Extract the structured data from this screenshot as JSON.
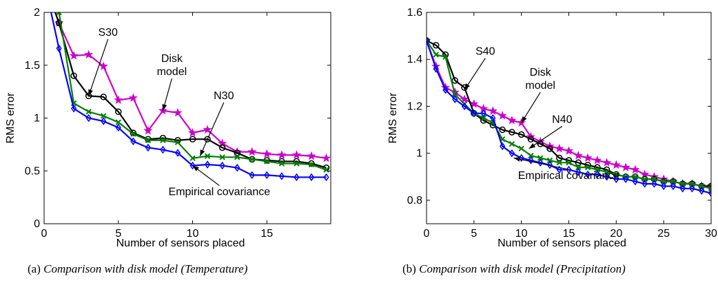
{
  "chart_data": [
    {
      "type": "line",
      "panel": "a",
      "caption_prefix": "(a)",
      "caption": "Comparison with disk model (Temperature)",
      "xlabel": "Number of sensors placed",
      "ylabel": "RMS error",
      "xlim": [
        0,
        19.3
      ],
      "ylim": [
        0,
        2
      ],
      "xticks": [
        0,
        5,
        10,
        15
      ],
      "yticks": [
        0,
        0.5,
        1,
        1.5,
        2
      ],
      "ytick_labels": [
        "0",
        "0.5",
        "1",
        "1.5",
        "2"
      ],
      "grid": false,
      "series": [
        {
          "id": "disk",
          "color": "#cc00cc",
          "marker": "star",
          "x": [
            0,
            1,
            2,
            3,
            4,
            5,
            6,
            7,
            8,
            9,
            10,
            11,
            12,
            13,
            14,
            15,
            16,
            17,
            18,
            19
          ],
          "y": [
            2.3,
            1.9,
            1.59,
            1.6,
            1.49,
            1.17,
            1.19,
            0.88,
            1.07,
            1.05,
            0.86,
            0.89,
            0.76,
            0.68,
            0.68,
            0.66,
            0.65,
            0.65,
            0.64,
            0.62
          ]
        },
        {
          "id": "s30",
          "color": "#000000",
          "marker": "circle",
          "x": [
            0,
            1,
            2,
            3,
            4,
            5,
            6,
            7,
            8,
            9,
            10,
            11,
            12,
            13,
            14,
            15,
            16,
            17,
            18,
            19
          ],
          "y": [
            2.3,
            1.9,
            1.4,
            1.21,
            1.2,
            1.06,
            0.86,
            0.8,
            0.81,
            0.79,
            0.8,
            0.8,
            0.72,
            0.67,
            0.61,
            0.6,
            0.59,
            0.59,
            0.57,
            0.53
          ]
        },
        {
          "id": "n30",
          "color": "#008000",
          "marker": "x",
          "x": [
            0,
            1,
            2,
            3,
            4,
            5,
            6,
            7,
            8,
            9,
            10,
            11,
            12,
            13,
            14,
            15,
            16,
            17,
            18,
            19
          ],
          "y": [
            2.3,
            2.0,
            1.14,
            1.06,
            1.02,
            0.96,
            0.85,
            0.79,
            0.79,
            0.77,
            0.62,
            0.64,
            0.63,
            0.63,
            0.61,
            0.59,
            0.57,
            0.57,
            0.56,
            0.51
          ]
        },
        {
          "id": "empirical",
          "color": "#0000ff",
          "marker": "diamond",
          "x": [
            0,
            1,
            2,
            3,
            4,
            5,
            6,
            7,
            8,
            9,
            10,
            11,
            12,
            13,
            14,
            15,
            16,
            17,
            18,
            19
          ],
          "y": [
            2.3,
            1.66,
            1.09,
            1.0,
            0.97,
            0.91,
            0.78,
            0.72,
            0.7,
            0.67,
            0.55,
            0.56,
            0.55,
            0.53,
            0.46,
            0.46,
            0.45,
            0.44,
            0.44,
            0.44
          ]
        }
      ],
      "annotations": [
        {
          "id": "s30",
          "text": "S30",
          "lines": [
            "S30"
          ],
          "anchor_x": 3,
          "anchor_y": 1.21,
          "label_x": 4.3,
          "label_y": 1.78
        },
        {
          "id": "disk",
          "text": "Disk model",
          "lines": [
            "Disk",
            "model"
          ],
          "anchor_x": 8,
          "anchor_y": 1.07,
          "label_x": 8.6,
          "label_y": 1.53
        },
        {
          "id": "n30",
          "text": "N30",
          "lines": [
            "N30"
          ],
          "anchor_x": 10.5,
          "anchor_y": 0.64,
          "label_x": 12.1,
          "label_y": 1.18
        },
        {
          "id": "empirical",
          "text": "Empirical covariance",
          "lines": [
            "Empirical covariance"
          ],
          "anchor_x": 10,
          "anchor_y": 0.55,
          "label_x": 11.8,
          "label_y": 0.27
        }
      ]
    },
    {
      "type": "line",
      "panel": "b",
      "caption_prefix": "(b)",
      "caption": "Comparison with disk model (Precipitation)",
      "xlabel": "Number of sensors placed",
      "ylabel": "RMS error",
      "xlim": [
        0,
        30
      ],
      "ylim": [
        0.7,
        1.6
      ],
      "xticks": [
        0,
        5,
        10,
        15,
        20,
        25,
        30
      ],
      "yticks": [
        0.8,
        1,
        1.2,
        1.4,
        1.6
      ],
      "ytick_labels": [
        "0.8",
        "1",
        "1.2",
        "1.4",
        "1.6"
      ],
      "grid": false,
      "series": [
        {
          "id": "disk",
          "color": "#cc00cc",
          "marker": "star",
          "x": [
            0,
            1,
            2,
            3,
            4,
            5,
            6,
            7,
            8,
            9,
            10,
            11,
            12,
            13,
            14,
            15,
            16,
            17,
            18,
            19,
            20,
            21,
            22,
            23,
            24,
            25,
            26,
            27,
            28,
            29,
            30
          ],
          "y": [
            1.48,
            1.37,
            1.28,
            1.26,
            1.23,
            1.21,
            1.19,
            1.18,
            1.16,
            1.14,
            1.13,
            1.07,
            1.05,
            1.03,
            1.02,
            1.01,
            0.99,
            0.98,
            0.97,
            0.96,
            0.95,
            0.94,
            0.93,
            0.91,
            0.9,
            0.89,
            0.88,
            0.87,
            0.87,
            0.86,
            0.86
          ]
        },
        {
          "id": "s40",
          "color": "#000000",
          "marker": "circle",
          "x": [
            0,
            1,
            2,
            3,
            4,
            5,
            6,
            7,
            8,
            9,
            10,
            11,
            12,
            13,
            14,
            15,
            16,
            17,
            18,
            19,
            20,
            21,
            22,
            23,
            24,
            25,
            26,
            27,
            28,
            29,
            30
          ],
          "y": [
            1.48,
            1.46,
            1.42,
            1.31,
            1.28,
            1.17,
            1.14,
            1.12,
            1.1,
            1.09,
            1.08,
            1.06,
            1.04,
            1.02,
            0.98,
            0.97,
            0.96,
            0.95,
            0.94,
            0.93,
            0.91,
            0.9,
            0.9,
            0.89,
            0.89,
            0.88,
            0.88,
            0.87,
            0.87,
            0.86,
            0.86
          ]
        },
        {
          "id": "n40",
          "color": "#008000",
          "marker": "x",
          "x": [
            0,
            1,
            2,
            3,
            4,
            5,
            6,
            7,
            8,
            9,
            10,
            11,
            12,
            13,
            14,
            15,
            16,
            17,
            18,
            19,
            20,
            21,
            22,
            23,
            24,
            25,
            26,
            27,
            28,
            29,
            30
          ],
          "y": [
            1.48,
            1.42,
            1.41,
            1.25,
            1.21,
            1.17,
            1.15,
            1.13,
            1.06,
            1.04,
            1.02,
            0.99,
            0.98,
            0.97,
            0.96,
            0.96,
            0.94,
            0.94,
            0.93,
            0.92,
            0.91,
            0.9,
            0.9,
            0.89,
            0.89,
            0.88,
            0.88,
            0.87,
            0.87,
            0.86,
            0.85
          ]
        },
        {
          "id": "empirical",
          "color": "#0000ff",
          "marker": "diamond",
          "x": [
            0,
            1,
            2,
            3,
            4,
            5,
            6,
            7,
            8,
            9,
            10,
            11,
            12,
            13,
            14,
            15,
            16,
            17,
            18,
            19,
            20,
            21,
            22,
            23,
            24,
            25,
            26,
            27,
            28,
            29,
            30
          ],
          "y": [
            1.48,
            1.36,
            1.27,
            1.23,
            1.2,
            1.17,
            1.17,
            1.15,
            1.03,
            1.0,
            0.98,
            0.97,
            0.96,
            0.95,
            0.93,
            0.93,
            0.92,
            0.91,
            0.91,
            0.9,
            0.89,
            0.89,
            0.88,
            0.87,
            0.87,
            0.86,
            0.86,
            0.85,
            0.85,
            0.84,
            0.83
          ]
        }
      ],
      "annotations": [
        {
          "id": "s40",
          "text": "S40",
          "lines": [
            "S40"
          ],
          "anchor_x": 4,
          "anchor_y": 1.27,
          "label_x": 6.2,
          "label_y": 1.42
        },
        {
          "id": "disk",
          "text": "Disk model",
          "lines": [
            "Disk",
            "model"
          ],
          "anchor_x": 10,
          "anchor_y": 1.13,
          "label_x": 12.0,
          "label_y": 1.33
        },
        {
          "id": "n40",
          "text": "N40",
          "lines": [
            "N40"
          ],
          "anchor_x": 10.8,
          "anchor_y": 1.02,
          "label_x": 14.3,
          "label_y": 1.13
        },
        {
          "id": "empirical",
          "text": "Empirical covariance",
          "lines": [
            "Empirical covariance"
          ],
          "anchor_x": 9.2,
          "anchor_y": 0.98,
          "label_x": 15.0,
          "label_y": 0.89
        }
      ]
    }
  ]
}
